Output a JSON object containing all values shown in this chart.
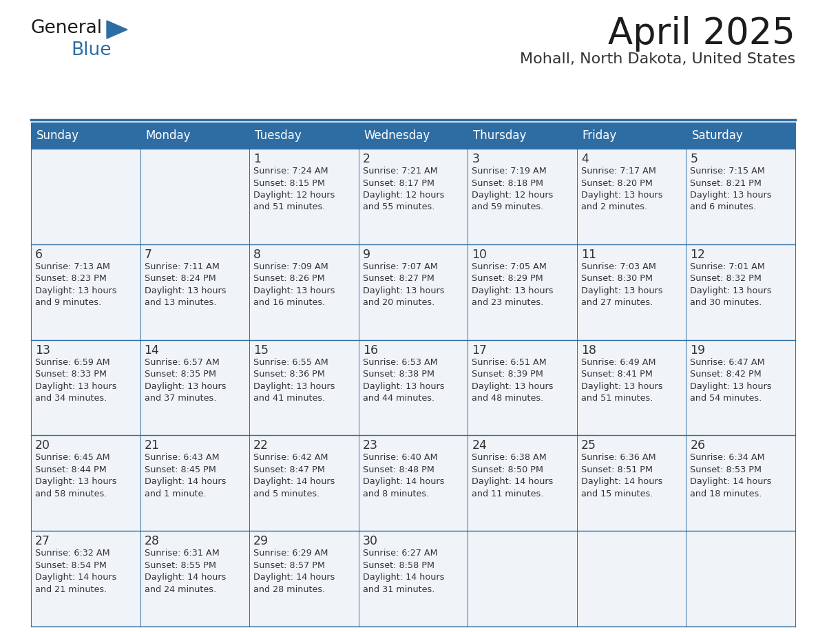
{
  "title": "April 2025",
  "subtitle": "Mohall, North Dakota, United States",
  "days_of_week": [
    "Sunday",
    "Monday",
    "Tuesday",
    "Wednesday",
    "Thursday",
    "Friday",
    "Saturday"
  ],
  "header_bg": "#2E6DA4",
  "header_text": "#FFFFFF",
  "cell_bg": "#F0F4F8",
  "border_color": "#2E6DA4",
  "text_color": "#333333",
  "calendar_data": [
    [
      {
        "day": "",
        "info": ""
      },
      {
        "day": "",
        "info": ""
      },
      {
        "day": "1",
        "info": "Sunrise: 7:24 AM\nSunset: 8:15 PM\nDaylight: 12 hours\nand 51 minutes."
      },
      {
        "day": "2",
        "info": "Sunrise: 7:21 AM\nSunset: 8:17 PM\nDaylight: 12 hours\nand 55 minutes."
      },
      {
        "day": "3",
        "info": "Sunrise: 7:19 AM\nSunset: 8:18 PM\nDaylight: 12 hours\nand 59 minutes."
      },
      {
        "day": "4",
        "info": "Sunrise: 7:17 AM\nSunset: 8:20 PM\nDaylight: 13 hours\nand 2 minutes."
      },
      {
        "day": "5",
        "info": "Sunrise: 7:15 AM\nSunset: 8:21 PM\nDaylight: 13 hours\nand 6 minutes."
      }
    ],
    [
      {
        "day": "6",
        "info": "Sunrise: 7:13 AM\nSunset: 8:23 PM\nDaylight: 13 hours\nand 9 minutes."
      },
      {
        "day": "7",
        "info": "Sunrise: 7:11 AM\nSunset: 8:24 PM\nDaylight: 13 hours\nand 13 minutes."
      },
      {
        "day": "8",
        "info": "Sunrise: 7:09 AM\nSunset: 8:26 PM\nDaylight: 13 hours\nand 16 minutes."
      },
      {
        "day": "9",
        "info": "Sunrise: 7:07 AM\nSunset: 8:27 PM\nDaylight: 13 hours\nand 20 minutes."
      },
      {
        "day": "10",
        "info": "Sunrise: 7:05 AM\nSunset: 8:29 PM\nDaylight: 13 hours\nand 23 minutes."
      },
      {
        "day": "11",
        "info": "Sunrise: 7:03 AM\nSunset: 8:30 PM\nDaylight: 13 hours\nand 27 minutes."
      },
      {
        "day": "12",
        "info": "Sunrise: 7:01 AM\nSunset: 8:32 PM\nDaylight: 13 hours\nand 30 minutes."
      }
    ],
    [
      {
        "day": "13",
        "info": "Sunrise: 6:59 AM\nSunset: 8:33 PM\nDaylight: 13 hours\nand 34 minutes."
      },
      {
        "day": "14",
        "info": "Sunrise: 6:57 AM\nSunset: 8:35 PM\nDaylight: 13 hours\nand 37 minutes."
      },
      {
        "day": "15",
        "info": "Sunrise: 6:55 AM\nSunset: 8:36 PM\nDaylight: 13 hours\nand 41 minutes."
      },
      {
        "day": "16",
        "info": "Sunrise: 6:53 AM\nSunset: 8:38 PM\nDaylight: 13 hours\nand 44 minutes."
      },
      {
        "day": "17",
        "info": "Sunrise: 6:51 AM\nSunset: 8:39 PM\nDaylight: 13 hours\nand 48 minutes."
      },
      {
        "day": "18",
        "info": "Sunrise: 6:49 AM\nSunset: 8:41 PM\nDaylight: 13 hours\nand 51 minutes."
      },
      {
        "day": "19",
        "info": "Sunrise: 6:47 AM\nSunset: 8:42 PM\nDaylight: 13 hours\nand 54 minutes."
      }
    ],
    [
      {
        "day": "20",
        "info": "Sunrise: 6:45 AM\nSunset: 8:44 PM\nDaylight: 13 hours\nand 58 minutes."
      },
      {
        "day": "21",
        "info": "Sunrise: 6:43 AM\nSunset: 8:45 PM\nDaylight: 14 hours\nand 1 minute."
      },
      {
        "day": "22",
        "info": "Sunrise: 6:42 AM\nSunset: 8:47 PM\nDaylight: 14 hours\nand 5 minutes."
      },
      {
        "day": "23",
        "info": "Sunrise: 6:40 AM\nSunset: 8:48 PM\nDaylight: 14 hours\nand 8 minutes."
      },
      {
        "day": "24",
        "info": "Sunrise: 6:38 AM\nSunset: 8:50 PM\nDaylight: 14 hours\nand 11 minutes."
      },
      {
        "day": "25",
        "info": "Sunrise: 6:36 AM\nSunset: 8:51 PM\nDaylight: 14 hours\nand 15 minutes."
      },
      {
        "day": "26",
        "info": "Sunrise: 6:34 AM\nSunset: 8:53 PM\nDaylight: 14 hours\nand 18 minutes."
      }
    ],
    [
      {
        "day": "27",
        "info": "Sunrise: 6:32 AM\nSunset: 8:54 PM\nDaylight: 14 hours\nand 21 minutes."
      },
      {
        "day": "28",
        "info": "Sunrise: 6:31 AM\nSunset: 8:55 PM\nDaylight: 14 hours\nand 24 minutes."
      },
      {
        "day": "29",
        "info": "Sunrise: 6:29 AM\nSunset: 8:57 PM\nDaylight: 14 hours\nand 28 minutes."
      },
      {
        "day": "30",
        "info": "Sunrise: 6:27 AM\nSunset: 8:58 PM\nDaylight: 14 hours\nand 31 minutes."
      },
      {
        "day": "",
        "info": ""
      },
      {
        "day": "",
        "info": ""
      },
      {
        "day": "",
        "info": ""
      }
    ]
  ]
}
